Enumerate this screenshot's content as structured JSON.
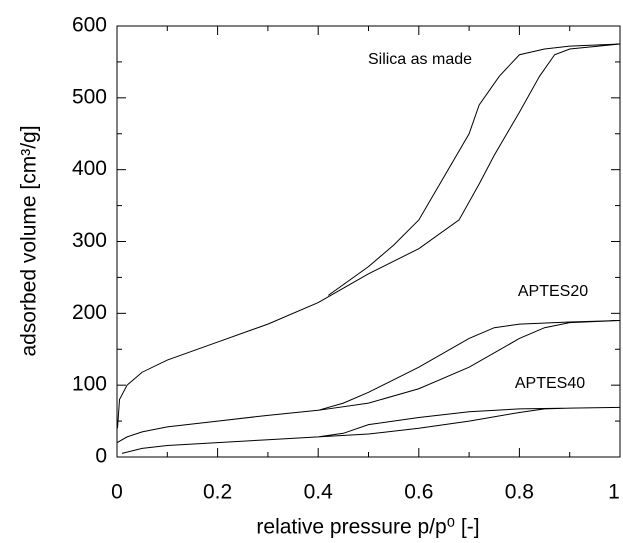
{
  "chart_data": {
    "type": "line",
    "xlabel": "relative pressure p/p⁰ [-]",
    "ylabel": "adsorbed volume [cm³/g]",
    "xlim": [
      0,
      1
    ],
    "xticks": [
      0,
      0.2,
      0.4,
      0.6,
      0.8,
      1
    ],
    "xminorticks": [
      0.1,
      0.3,
      0.5,
      0.7,
      0.9
    ],
    "ylim": [
      0,
      600
    ],
    "yticks": [
      0,
      100,
      200,
      300,
      400,
      500,
      600
    ],
    "yminorticks": [
      50,
      150,
      250,
      350,
      450,
      550
    ],
    "grid": false,
    "series": [
      {
        "name": "Silica as made",
        "color": "#000000",
        "x": [
          0.001,
          0.005,
          0.02,
          0.05,
          0.1,
          0.2,
          0.3,
          0.4,
          0.45,
          0.5,
          0.6,
          0.68,
          0.72,
          0.75,
          0.8,
          0.84,
          0.87,
          0.9,
          1.0,
          0.9,
          0.85,
          0.8,
          0.76,
          0.72,
          0.7,
          0.65,
          0.6,
          0.55,
          0.5,
          0.45,
          0.42
        ],
        "values": [
          40,
          80,
          100,
          118,
          135,
          160,
          185,
          215,
          235,
          255,
          290,
          330,
          380,
          420,
          480,
          530,
          560,
          568,
          575,
          572,
          568,
          560,
          530,
          490,
          450,
          390,
          330,
          295,
          265,
          240,
          225
        ]
      },
      {
        "name": "APTES20",
        "color": "#000000",
        "x": [
          0.0,
          0.02,
          0.05,
          0.1,
          0.2,
          0.3,
          0.4,
          0.5,
          0.6,
          0.7,
          0.8,
          0.85,
          0.9,
          1.0,
          0.9,
          0.8,
          0.75,
          0.7,
          0.6,
          0.5,
          0.45,
          0.4
        ],
        "values": [
          20,
          28,
          35,
          42,
          50,
          58,
          65,
          75,
          95,
          125,
          165,
          180,
          187,
          190,
          188,
          185,
          180,
          165,
          125,
          90,
          75,
          65
        ]
      },
      {
        "name": "APTES40",
        "color": "#000000",
        "x": [
          0.01,
          0.05,
          0.1,
          0.2,
          0.3,
          0.4,
          0.5,
          0.6,
          0.7,
          0.8,
          0.85,
          0.9,
          1.0,
          0.9,
          0.8,
          0.7,
          0.6,
          0.5,
          0.45,
          0.4
        ],
        "values": [
          5,
          12,
          16,
          20,
          24,
          28,
          32,
          40,
          50,
          62,
          67,
          68,
          69,
          68,
          67,
          63,
          55,
          45,
          33,
          28
        ]
      }
    ]
  }
}
